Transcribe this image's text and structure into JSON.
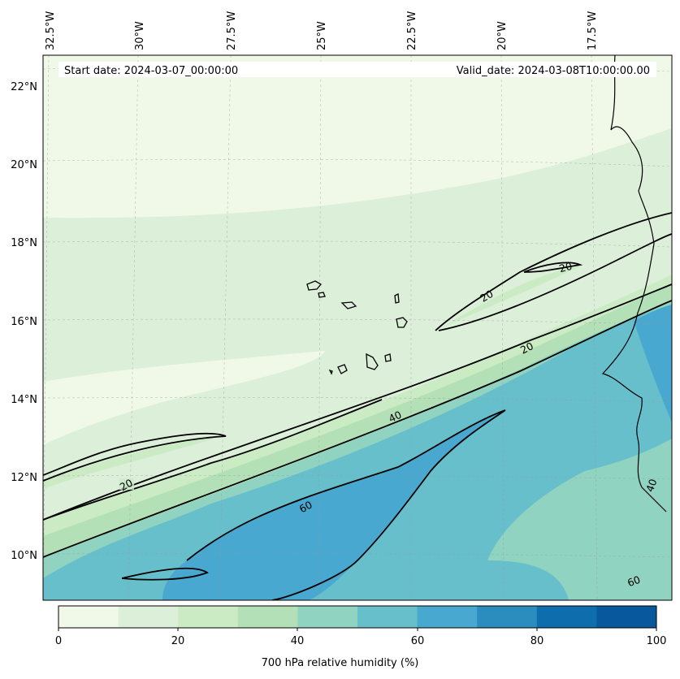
{
  "map": {
    "start_date_label": "Start date: 2024-03-07_00:00:00",
    "valid_date_label": "Valid_date: 2024-03-08T10:00:00.00",
    "lon_labels": [
      "32.5°W",
      "30°W",
      "27.5°W",
      "25°W",
      "22.5°W",
      "20°W",
      "17.5°W"
    ],
    "lat_labels": [
      "22°N",
      "20°N",
      "18°N",
      "16°N",
      "14°N",
      "12°N",
      "10°N"
    ],
    "contour_labels": [
      "20",
      "20",
      "20",
      "20",
      "40",
      "60",
      "40",
      "60"
    ],
    "variable": "700 hPa relative humidity (%)",
    "units": "%"
  },
  "colorbar": {
    "title": "700 hPa relative humidity (%)",
    "tick_labels": [
      "0",
      "20",
      "40",
      "60",
      "80",
      "100"
    ],
    "levels": [
      0,
      10,
      20,
      30,
      40,
      50,
      60,
      70,
      80,
      90,
      100
    ],
    "colors": [
      "#f0f9e8",
      "#dcf0d9",
      "#cbebc5",
      "#b3e0b6",
      "#8fd3c0",
      "#67bfcc",
      "#48a8cf",
      "#2b8cbe",
      "#0e6dad",
      "#08589e"
    ]
  },
  "contours": {
    "levels": [
      20,
      40,
      60
    ],
    "line_color": "#000000"
  },
  "chart_data": {
    "type": "heatmap",
    "title": "",
    "variable": "700 hPa relative humidity",
    "units": "%",
    "longitude_range": [
      "33°W",
      "16°W"
    ],
    "latitude_range": [
      "9°N",
      "23°N"
    ],
    "color_levels": [
      0,
      10,
      20,
      30,
      40,
      50,
      60,
      70,
      80,
      90,
      100
    ],
    "contour_levels": [
      20,
      40,
      60
    ],
    "gridlines": true
  }
}
